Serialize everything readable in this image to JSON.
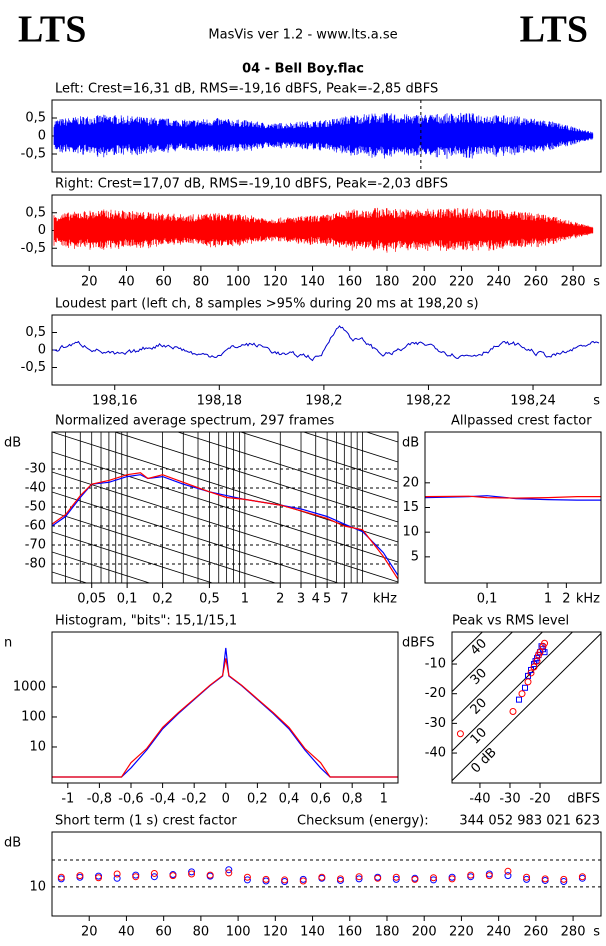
{
  "header": {
    "logo_left": "LTS",
    "logo_right": "LTS",
    "app": "MasVis ver 1.2 - www.lts.a.se",
    "file": "04 - Bell Boy.flac"
  },
  "chart_data": [
    {
      "type": "waveform",
      "title": "Left: Crest=16,31 dB, RMS=-19,16 dBFS, Peak=-2,85 dBFS",
      "color": "#0000ff",
      "xlim": [
        0,
        295
      ],
      "ylim": [
        -1,
        1
      ],
      "yticks": [
        {
          "value": 0.5,
          "label": "0,5"
        },
        0,
        {
          "value": -0.5,
          "label": "-0,5"
        }
      ],
      "cursor_x": 198.2
    },
    {
      "type": "waveform",
      "title": "Right: Crest=17,07 dB, RMS=-19,10 dBFS, Peak=-2,03 dBFS",
      "color": "#ff0000",
      "xlim": [
        0,
        295
      ],
      "ylim": [
        -1,
        1
      ],
      "yticks": [
        {
          "value": 0.5,
          "label": "0,5"
        },
        0,
        {
          "value": -0.5,
          "label": "-0,5"
        }
      ],
      "xticks": [
        20,
        40,
        60,
        80,
        100,
        120,
        140,
        160,
        180,
        200,
        220,
        240,
        260,
        280
      ],
      "x_unit": "s"
    },
    {
      "type": "waveform",
      "title": "Loudest part (left  ch, 8 samples >95% during 20 ms at 198,20 s)",
      "color": "#0000cc",
      "xlim": [
        198.148,
        198.253
      ],
      "ylim": [
        -1,
        1
      ],
      "yticks": [
        {
          "value": 0.5,
          "label": "0,5"
        },
        0,
        {
          "value": -0.5,
          "label": "-0,5"
        }
      ],
      "xticks": [
        {
          "value": 198.16,
          "label": "198,16"
        },
        {
          "value": 198.18,
          "label": "198,18"
        },
        {
          "value": 198.2,
          "label": "198,2"
        },
        {
          "value": 198.22,
          "label": "198,22"
        },
        {
          "value": 198.24,
          "label": "198,24"
        }
      ],
      "x_unit": "s"
    },
    {
      "type": "line",
      "title": "Normalized average spectrum, 297 frames",
      "y_unit": "dB",
      "x_unit": "kHz",
      "log_x": true,
      "grid": true,
      "xlim": [
        0.023,
        20
      ],
      "ylim": [
        -90,
        -10.5
      ],
      "xticks": [
        {
          "value": 0.05,
          "label": "0,05"
        },
        {
          "value": 0.1,
          "label": "0,1"
        },
        {
          "value": 0.2,
          "label": "0,2"
        },
        {
          "value": 0.5,
          "label": "0,5"
        },
        1,
        2,
        3,
        4,
        5,
        7
      ],
      "yticks": [
        -30,
        -40,
        -50,
        -60,
        -70,
        -80
      ],
      "x": [
        0.023,
        0.03,
        0.04,
        0.05,
        0.07,
        0.1,
        0.13,
        0.15,
        0.2,
        0.3,
        0.5,
        0.7,
        1,
        2,
        3,
        5,
        7,
        10,
        15,
        20
      ],
      "series": [
        {
          "color": "#0000ff",
          "values": [
            -60,
            -55,
            -45,
            -38,
            -37,
            -34,
            -33,
            -35,
            -34,
            -38,
            -42,
            -44,
            -46,
            -49,
            -51,
            -55,
            -59,
            -63,
            -74,
            -86
          ]
        },
        {
          "color": "#ff0000",
          "values": [
            -59,
            -54,
            -44,
            -38,
            -36,
            -33,
            -32,
            -35,
            -33,
            -37,
            -42,
            -45,
            -46,
            -49,
            -52,
            -56,
            -60,
            -62,
            -76,
            -88
          ]
        }
      ]
    },
    {
      "type": "line",
      "title": "Allpassed crest factor",
      "y_unit": "dB",
      "x_unit": "kHz",
      "log_x": true,
      "xlim": [
        0.0096,
        7.4
      ],
      "ylim": [
        -0.3,
        30.3
      ],
      "xticks": [
        {
          "value": 0.1,
          "label": "0,1"
        },
        1,
        2
      ],
      "yticks": [
        20,
        15,
        10,
        5
      ],
      "x": [
        0.0096,
        0.05,
        0.1,
        0.3,
        1,
        3,
        7.4
      ],
      "series": [
        {
          "color": "#0000ff",
          "values": [
            17,
            17.2,
            17.4,
            16.8,
            16.6,
            16.5,
            16.5
          ]
        },
        {
          "color": "#ff0000",
          "values": [
            17.2,
            17.3,
            17,
            16.9,
            17,
            17.2,
            17.2
          ]
        }
      ]
    },
    {
      "type": "line",
      "title": "Histogram, \"bits\": 15,1/15,1",
      "y_unit": "n",
      "log_y": true,
      "xlim": [
        -1.1,
        1.09
      ],
      "ylim": [
        0.63,
        68000
      ],
      "xticks": [
        -1,
        {
          "value": -0.8,
          "label": "-0,8"
        },
        {
          "value": -0.6,
          "label": "-0,6"
        },
        {
          "value": -0.4,
          "label": "-0,4"
        },
        {
          "value": -0.2,
          "label": "-0,2"
        },
        0,
        {
          "value": 0.2,
          "label": "0,2"
        },
        {
          "value": 0.4,
          "label": "0,4"
        },
        {
          "value": 0.6,
          "label": "0,6"
        },
        {
          "value": 0.8,
          "label": "0,8"
        },
        1
      ],
      "yticks": [
        1000,
        100,
        10
      ],
      "x": [
        -1.1,
        -0.66,
        -0.6,
        -0.5,
        -0.4,
        -0.3,
        -0.2,
        -0.1,
        -0.02,
        0,
        0.02,
        0.1,
        0.2,
        0.3,
        0.4,
        0.5,
        0.6,
        0.66,
        1.09
      ],
      "series": [
        {
          "color": "#0000ff",
          "values": [
            1,
            1,
            2,
            8,
            40,
            130,
            380,
            1100,
            2300,
            20000,
            2300,
            1100,
            380,
            130,
            40,
            8,
            2,
            1,
            1
          ]
        },
        {
          "color": "#ff0000",
          "values": [
            1,
            1,
            3,
            9,
            45,
            140,
            400,
            1150,
            2400,
            9000,
            2400,
            1150,
            400,
            140,
            45,
            9,
            3,
            1,
            1
          ]
        }
      ]
    },
    {
      "type": "scatter",
      "title": "Peak vs RMS level",
      "y_unit": "dBFS",
      "x_unit": "dBFS",
      "xlim": [
        -49.3,
        0.3
      ],
      "ylim": [
        -50.1,
        0.8
      ],
      "xticks": [
        -40,
        -30,
        -20
      ],
      "yticks": [
        -10,
        -20,
        -30,
        -40
      ],
      "crest_lines": [
        {
          "value": 40,
          "label": "40"
        },
        {
          "value": 30,
          "label": "30"
        },
        {
          "value": 20,
          "label": "20"
        },
        {
          "value": 10,
          "label": "10"
        },
        {
          "value": 0,
          "label": "0 dB"
        }
      ],
      "series": [
        {
          "color": "#0000ff",
          "marker": "square",
          "x": [
            -21,
            -20,
            -19,
            -22,
            -23,
            -20.5,
            -19.5,
            -25,
            -27,
            -24,
            -21.5,
            -18.5
          ],
          "values": [
            -8,
            -6,
            -5,
            -10,
            -12,
            -7,
            -4,
            -18,
            -22,
            -14,
            -9,
            -6
          ]
        },
        {
          "color": "#ff0000",
          "marker": "circle",
          "x": [
            -20,
            -19,
            -21,
            -22,
            -18.5,
            -24,
            -26,
            -29,
            -20.5,
            -23,
            -46.5
          ],
          "values": [
            -6,
            -4,
            -9,
            -11,
            -3,
            -16,
            -20,
            -26,
            -7,
            -13,
            -33.5
          ]
        }
      ]
    },
    {
      "type": "scatter",
      "title": "Short term (1 s) crest factor",
      "checksum_label": "Checksum (energy):",
      "checksum": "344 052 983 021 623",
      "y_unit": "dB",
      "x_unit": "s",
      "grid": true,
      "xlim": [
        0,
        295
      ],
      "ylim": [
        4.6,
        20.2
      ],
      "xticks": [
        20,
        40,
        60,
        80,
        100,
        120,
        140,
        160,
        180,
        200,
        220,
        240,
        260,
        280
      ],
      "yticks": [
        10
      ],
      "x": [
        5,
        15,
        25,
        35,
        45,
        55,
        65,
        75,
        85,
        95,
        105,
        115,
        125,
        135,
        145,
        155,
        165,
        175,
        185,
        195,
        205,
        215,
        225,
        235,
        245,
        255,
        265,
        275,
        285
      ],
      "series": [
        {
          "color": "#0000ff",
          "marker": "circle",
          "values": [
            11.5,
            11.8,
            12,
            11.6,
            12.2,
            11.9,
            12.3,
            12.8,
            12,
            13.2,
            11.3,
            11.1,
            11,
            11.4,
            11.6,
            11.2,
            11.5,
            11.8,
            11.4,
            11.6,
            11.3,
            11.8,
            11.9,
            12.4,
            12.1,
            11.4,
            11.2,
            11,
            11.6
          ]
        },
        {
          "color": "#ff0000",
          "marker": "circle",
          "values": [
            11.8,
            12.1,
            11.7,
            12.4,
            11.9,
            12.5,
            12.1,
            12.4,
            12.2,
            12.6,
            11.8,
            11.4,
            11.3,
            11.1,
            11.8,
            11.5,
            11.9,
            11.6,
            11.8,
            11.4,
            11.7,
            11.5,
            12.2,
            12.1,
            12.9,
            11.8,
            11.5,
            11.4,
            11.9
          ]
        }
      ]
    }
  ]
}
